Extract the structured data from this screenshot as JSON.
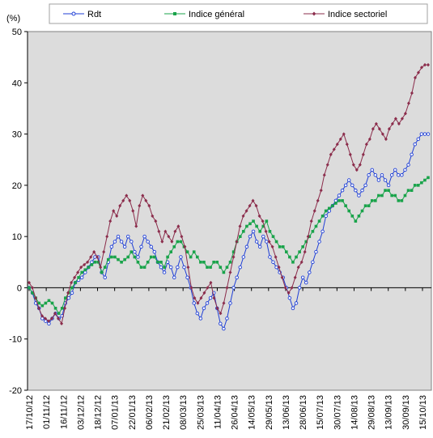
{
  "chart_data": {
    "type": "line",
    "title": "",
    "ylabel": "(%)",
    "xlabel": "",
    "ylim": [
      -20,
      50
    ],
    "yticks": [
      -20,
      -10,
      0,
      10,
      20,
      30,
      40,
      50
    ],
    "grid": false,
    "legend_position": "top",
    "plot_background": "#dcdcdc",
    "x_tick_labels": [
      "17/10/12",
      "01/11/12",
      "16/11/12",
      "03/12/12",
      "18/12/12",
      "07/01/13",
      "22/01/13",
      "06/02/13",
      "21/02/13",
      "08/03/13",
      "25/03/13",
      "11/04/13",
      "26/04/13",
      "14/05/13",
      "29/05/13",
      "13/06/13",
      "28/06/13",
      "15/07/13",
      "30/07/13",
      "14/08/13",
      "29/08/13",
      "13/09/13",
      "30/09/13",
      "15/10/13"
    ],
    "series": [
      {
        "name": "Rdt",
        "color": "#1f3fd6",
        "marker": "circle",
        "values": [
          0,
          -1,
          -3,
          -4,
          -6,
          -6.5,
          -7,
          -6,
          -5,
          -6,
          -5.5,
          -3,
          -2,
          -1,
          1,
          1.5,
          2,
          3,
          4,
          5,
          6,
          6,
          3,
          2,
          5,
          8,
          9,
          10,
          9,
          8,
          10,
          9,
          7,
          6,
          8,
          10,
          9,
          8,
          7,
          5,
          4,
          3,
          5,
          4,
          2,
          4,
          6,
          4,
          2,
          0,
          -3,
          -5,
          -6,
          -4,
          -3,
          -2,
          -1,
          -4,
          -7,
          -8,
          -6,
          -3,
          0,
          2,
          4,
          6,
          8,
          10,
          11,
          9,
          8,
          10,
          9,
          6,
          5,
          4,
          3,
          2,
          0,
          -2,
          -4,
          -3,
          0,
          2,
          1,
          3,
          5,
          7,
          9,
          11,
          14,
          15,
          16,
          17,
          18,
          19,
          20,
          21,
          20,
          19,
          18,
          19,
          20,
          22,
          23,
          22,
          21,
          22,
          21,
          20,
          22,
          23,
          22,
          22,
          23,
          24,
          26,
          28,
          29,
          30,
          30,
          30
        ]
      },
      {
        "name": "Indice général",
        "color": "#19a34a",
        "marker": "square",
        "values": [
          0,
          -1,
          -2,
          -3,
          -3.5,
          -3,
          -2.5,
          -3,
          -4,
          -5,
          -4,
          -2,
          -1,
          0,
          1,
          2,
          3,
          3.5,
          4,
          4.5,
          5,
          5,
          3,
          4,
          5.5,
          6,
          6,
          5.5,
          5,
          5.5,
          6,
          7,
          6,
          5,
          4,
          4,
          5,
          6,
          6,
          5,
          5,
          4,
          6,
          7,
          8,
          9,
          9,
          8,
          7,
          6,
          7,
          6,
          5,
          5,
          4,
          4,
          5,
          5,
          4,
          3,
          4,
          5,
          7,
          9,
          10,
          11,
          12,
          12.5,
          13,
          12,
          11,
          12,
          13,
          11,
          10,
          9,
          8,
          8,
          7,
          6,
          5,
          6,
          7,
          8,
          9,
          10,
          11,
          12,
          13,
          14,
          15,
          15.5,
          16,
          16.5,
          17,
          17,
          16,
          15,
          14,
          13,
          14,
          15,
          16,
          16,
          17,
          17,
          18,
          18,
          19,
          19,
          18,
          18,
          17,
          17,
          18,
          19,
          19,
          20,
          20,
          20.5,
          21,
          21.5
        ]
      },
      {
        "name": "Indice sectoriel",
        "color": "#8b2c4b",
        "marker": "diamond",
        "values": [
          1,
          0,
          -2,
          -4,
          -5.5,
          -6,
          -6.5,
          -6,
          -5,
          -6,
          -7,
          -4,
          -1,
          1,
          2,
          3,
          4,
          4.5,
          5,
          6,
          7,
          6,
          4,
          7,
          10,
          13,
          15,
          14,
          16,
          17,
          18,
          17,
          15,
          12,
          16,
          18,
          17,
          16,
          14,
          13,
          11,
          9,
          11,
          10,
          9,
          11,
          12,
          10,
          8,
          4,
          0,
          -2,
          -3,
          -2,
          -1,
          0,
          1,
          -2,
          -4,
          -5,
          -3,
          0,
          3,
          6,
          9,
          12,
          14,
          15,
          16,
          17,
          16,
          14,
          13,
          11,
          9,
          8,
          6,
          4,
          2,
          0,
          -1,
          0,
          2,
          4,
          5,
          7,
          10,
          13,
          15,
          17,
          19,
          22,
          24,
          26,
          27,
          28,
          29,
          30,
          28,
          26,
          24,
          23,
          24,
          26,
          28,
          29,
          31,
          32,
          31,
          30,
          29,
          31,
          32,
          33,
          32,
          33,
          34,
          36,
          38,
          41,
          42,
          43,
          43.5,
          43.5
        ]
      }
    ]
  }
}
